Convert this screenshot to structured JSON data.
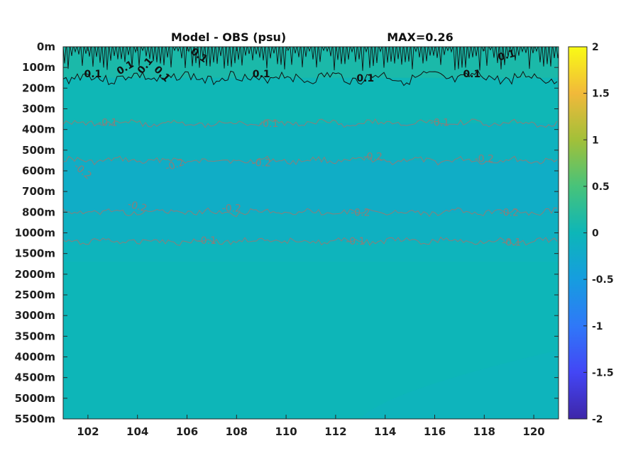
{
  "chart_data": {
    "type": "heatmap",
    "title": "Model - OBS (psu)",
    "max_label": "MAX=0.26",
    "x_ticks": [
      "102",
      "104",
      "106",
      "108",
      "110",
      "112",
      "114",
      "116",
      "118",
      "120"
    ],
    "x_tick_values": [
      102,
      104,
      106,
      108,
      110,
      112,
      114,
      116,
      118,
      120
    ],
    "xlim": [
      101,
      121
    ],
    "y_ticks": [
      "0m",
      "100m",
      "200m",
      "300m",
      "400m",
      "500m",
      "600m",
      "700m",
      "800m",
      "1000m",
      "1500m",
      "2000m",
      "2500m",
      "3000m",
      "3500m",
      "4000m",
      "4500m",
      "5000m",
      "5500m"
    ],
    "y_tick_depths": [
      0,
      100,
      200,
      300,
      400,
      500,
      600,
      700,
      800,
      1000,
      1500,
      2000,
      2500,
      3000,
      3500,
      4000,
      4500,
      5000,
      5500
    ],
    "colorbar": {
      "ticks": [
        "2",
        "1.5",
        "1",
        "0.5",
        "0",
        "-0.5",
        "-1",
        "-1.5",
        "-2"
      ],
      "tick_values": [
        2,
        1.5,
        1,
        0.5,
        0,
        -0.5,
        -1,
        -1.5,
        -2
      ],
      "range": [
        -2,
        2
      ]
    },
    "bands": [
      {
        "top_depth": 0,
        "bottom_depth": 150,
        "value": 0.12
      },
      {
        "top_depth": 150,
        "bottom_depth": 370,
        "value": 0.02
      },
      {
        "top_depth": 370,
        "bottom_depth": 550,
        "value": -0.08
      },
      {
        "top_depth": 550,
        "bottom_depth": 800,
        "value": -0.18
      },
      {
        "top_depth": 800,
        "bottom_depth": 1200,
        "value": -0.12
      },
      {
        "top_depth": 1200,
        "bottom_depth": 1700,
        "value": -0.05
      },
      {
        "top_depth": 1700,
        "bottom_depth": 5500,
        "value": 0.0
      }
    ],
    "contours": [
      {
        "level": 0.1,
        "color": "black",
        "depth": 150
      },
      {
        "level": -0.1,
        "color": "gray",
        "depth": 370
      },
      {
        "level": -0.2,
        "color": "gray",
        "depth": 550
      },
      {
        "level": -0.2,
        "color": "gray",
        "depth": 800
      },
      {
        "level": -0.1,
        "color": "gray",
        "depth": 1200
      }
    ],
    "contour_labels": [
      {
        "text": "0.1",
        "lon": 102.2,
        "depth": 130,
        "color": "black",
        "rot": 0
      },
      {
        "text": "0.1",
        "lon": 103.5,
        "depth": 100,
        "color": "black",
        "rot": -30
      },
      {
        "text": "0.1",
        "lon": 104.3,
        "depth": 90,
        "color": "black",
        "rot": -50
      },
      {
        "text": "0.1",
        "lon": 105.0,
        "depth": 130,
        "color": "black",
        "rot": 45
      },
      {
        "text": "0.1",
        "lon": 106.5,
        "depth": 40,
        "color": "black",
        "rot": 35
      },
      {
        "text": "0.1",
        "lon": 109.0,
        "depth": 130,
        "color": "black",
        "rot": 0
      },
      {
        "text": "0.1",
        "lon": 113.2,
        "depth": 150,
        "color": "black",
        "rot": 0
      },
      {
        "text": "0.1",
        "lon": 117.5,
        "depth": 130,
        "color": "black",
        "rot": 0
      },
      {
        "text": "0.1",
        "lon": 118.9,
        "depth": 40,
        "color": "black",
        "rot": -15
      },
      {
        "text": "-0.1",
        "lon": 102.8,
        "depth": 365,
        "color": "gray",
        "rot": 0
      },
      {
        "text": "-0.1",
        "lon": 109.3,
        "depth": 370,
        "color": "gray",
        "rot": 0
      },
      {
        "text": "-0.1",
        "lon": 116.2,
        "depth": 365,
        "color": "gray",
        "rot": 0
      },
      {
        "text": "-0.2",
        "lon": 101.8,
        "depth": 600,
        "color": "gray",
        "rot": 40
      },
      {
        "text": "-0.2",
        "lon": 105.5,
        "depth": 570,
        "color": "gray",
        "rot": -20
      },
      {
        "text": "-0.2",
        "lon": 109.0,
        "depth": 560,
        "color": "gray",
        "rot": 0
      },
      {
        "text": "-0.2",
        "lon": 113.5,
        "depth": 530,
        "color": "gray",
        "rot": 0
      },
      {
        "text": "-0.2",
        "lon": 118.0,
        "depth": 540,
        "color": "gray",
        "rot": 0
      },
      {
        "text": "-0.2",
        "lon": 104.0,
        "depth": 770,
        "color": "gray",
        "rot": 15
      },
      {
        "text": "-0.2",
        "lon": 107.8,
        "depth": 780,
        "color": "gray",
        "rot": 0
      },
      {
        "text": "-0.2",
        "lon": 113.0,
        "depth": 800,
        "color": "gray",
        "rot": 0
      },
      {
        "text": "-0.2",
        "lon": 119.0,
        "depth": 800,
        "color": "gray",
        "rot": 0
      },
      {
        "text": "-0.1",
        "lon": 106.8,
        "depth": 1180,
        "color": "gray",
        "rot": 0
      },
      {
        "text": "-0.1",
        "lon": 112.8,
        "depth": 1200,
        "color": "gray",
        "rot": 0
      },
      {
        "text": "-0.1",
        "lon": 119.1,
        "depth": 1220,
        "color": "gray",
        "rot": 0
      }
    ]
  }
}
